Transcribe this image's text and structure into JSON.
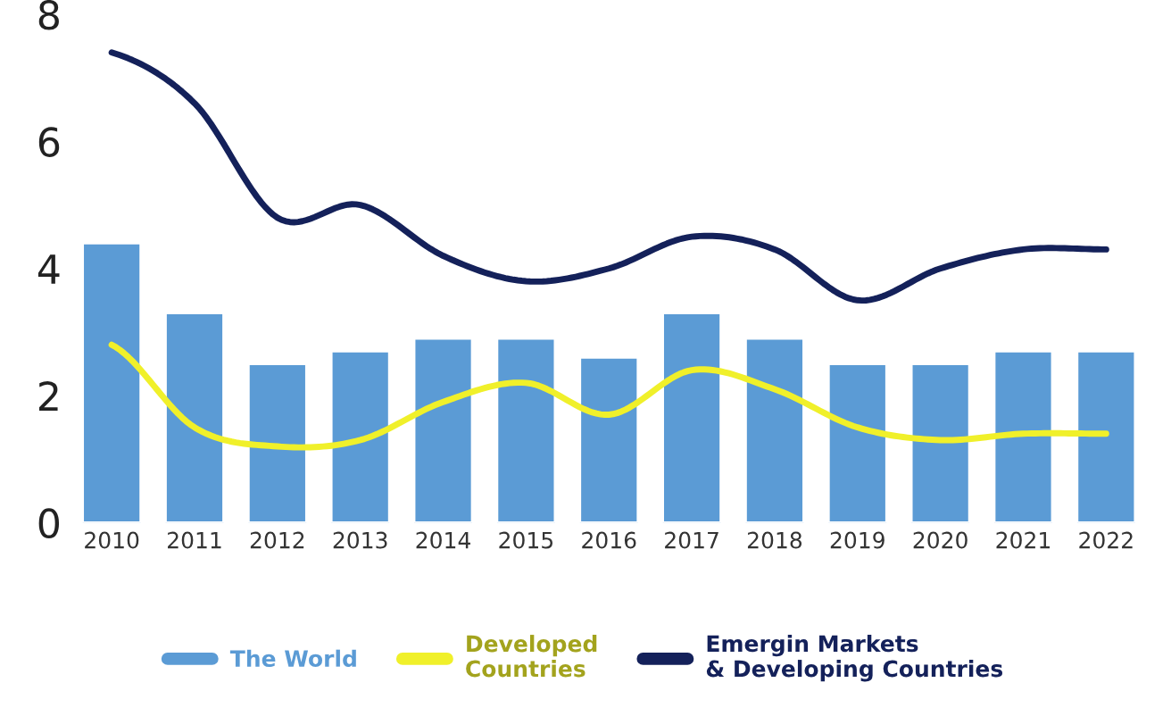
{
  "chart_data": {
    "type": "bar",
    "categories": [
      "2010",
      "2011",
      "2012",
      "2013",
      "2014",
      "2015",
      "2016",
      "2017",
      "2018",
      "2019",
      "2020",
      "2021",
      "2022"
    ],
    "series": [
      {
        "name": "The World",
        "color": "#5b9bd5",
        "values": [
          4.4,
          3.3,
          2.5,
          2.7,
          2.9,
          2.9,
          2.6,
          3.3,
          2.9,
          2.5,
          2.5,
          2.7,
          2.7
        ]
      },
      {
        "name": "Developed\nCountries",
        "type": "line",
        "color": "#f0f02a",
        "values": [
          2.8,
          1.5,
          1.2,
          1.3,
          1.9,
          2.2,
          1.7,
          2.4,
          2.1,
          1.5,
          1.3,
          1.4,
          1.4
        ]
      },
      {
        "name": "Emergin Markets\n& Developing Countries",
        "type": "line",
        "color": "#14215a",
        "values": [
          7.4,
          6.6,
          4.8,
          5.0,
          4.2,
          3.8,
          4.0,
          4.5,
          4.3,
          3.5,
          4.0,
          4.3,
          4.3
        ]
      }
    ],
    "ylim": [
      0,
      8
    ],
    "yticks": [
      0,
      2,
      4,
      6,
      8
    ],
    "grid": false,
    "legend": "bottom"
  }
}
